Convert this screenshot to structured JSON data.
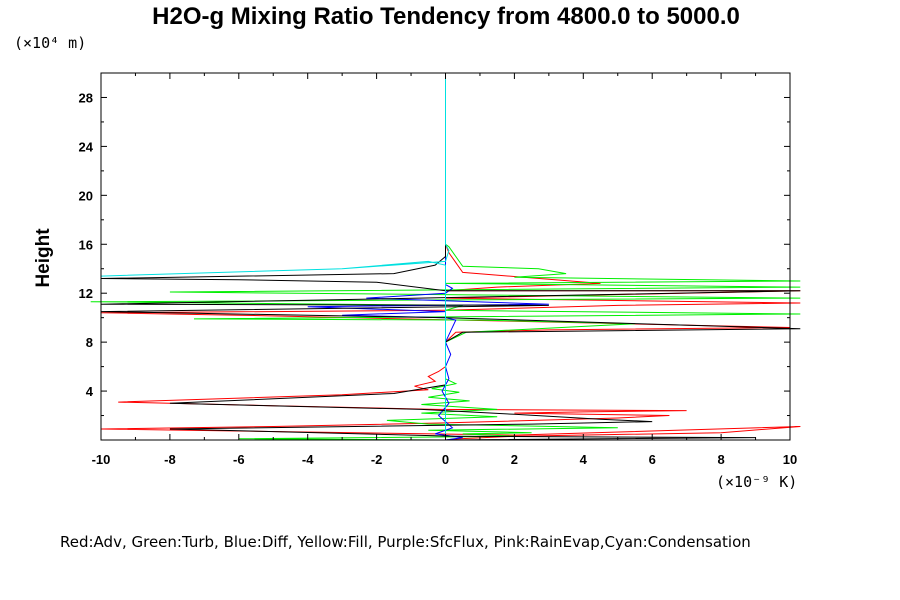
{
  "chart_data": {
    "type": "line",
    "title": "H2O-g Mixing Ratio Tendency from 4800.0 to 5000.0",
    "ylabel": "Height",
    "y_unit_label": "(×10⁴ m)",
    "x_unit_label": "(×10⁻⁹ K)",
    "xlim": [
      -10,
      10
    ],
    "ylim": [
      0,
      30
    ],
    "x_ticks": [
      "-10",
      "-8",
      "-6",
      "-4",
      "-2",
      "0",
      "2",
      "4",
      "6",
      "8",
      "10"
    ],
    "y_ticks": [
      "4",
      "8",
      "12",
      "16",
      "20",
      "24",
      "28"
    ],
    "grid": false,
    "legend_text": "Red:Adv, Green:Turb, Blue:Diff, Yellow:Fill, Purple:SfcFlux, Pink:RainEvap,Cyan:Condensation",
    "series": [
      {
        "color": "#ff0000",
        "points": [
          [
            0,
            0
          ],
          [
            0.4,
            0.1
          ],
          [
            2,
            0.3
          ],
          [
            8,
            0.6
          ],
          [
            10.3,
            1.1
          ],
          [
            2,
            0.4
          ],
          [
            -10,
            0.9
          ],
          [
            -5,
            1.1
          ],
          [
            0,
            1.4
          ],
          [
            5,
            1.8
          ],
          [
            6.5,
            2.0
          ],
          [
            2,
            2.2
          ],
          [
            4,
            2.3
          ],
          [
            7,
            2.4
          ],
          [
            -0.3,
            2.5
          ],
          [
            -5,
            2.8
          ],
          [
            -9.5,
            3.1
          ],
          [
            -3,
            3.7
          ],
          [
            -0.5,
            4.1
          ],
          [
            -0.9,
            4.4
          ],
          [
            -0.3,
            4.8
          ],
          [
            -0.5,
            5.2
          ],
          [
            -0.2,
            5.6
          ],
          [
            0,
            6
          ],
          [
            0,
            8
          ],
          [
            0.3,
            8.8
          ],
          [
            3,
            9.0
          ],
          [
            10,
            9.2
          ],
          [
            2,
            9.7
          ],
          [
            -6,
            10.2
          ],
          [
            -10,
            10.4
          ],
          [
            0,
            10.6
          ],
          [
            5,
            11.0
          ],
          [
            10.3,
            11.2
          ],
          [
            0,
            11.6
          ],
          [
            10.3,
            12.2
          ],
          [
            0,
            12.2
          ],
          [
            1.5,
            12.5
          ],
          [
            4.5,
            12.8
          ],
          [
            0.5,
            13.7
          ],
          [
            0.3,
            14.5
          ],
          [
            0.1,
            15.3
          ],
          [
            0,
            16
          ],
          [
            0,
            30
          ]
        ]
      },
      {
        "color": "#00ee00",
        "points": [
          [
            0,
            0
          ],
          [
            -6,
            0.1
          ],
          [
            2,
            0.3
          ],
          [
            0.5,
            0.5
          ],
          [
            2.5,
            0.6
          ],
          [
            -0.5,
            0.8
          ],
          [
            5,
            1.0
          ],
          [
            -0.5,
            1.3
          ],
          [
            -1.7,
            1.6
          ],
          [
            1.5,
            1.9
          ],
          [
            -0.7,
            2.2
          ],
          [
            1.5,
            2.5
          ],
          [
            -0.7,
            2.9
          ],
          [
            0.7,
            3.2
          ],
          [
            -0.5,
            3.5
          ],
          [
            0.4,
            3.9
          ],
          [
            -0.4,
            4.2
          ],
          [
            0.3,
            4.6
          ],
          [
            0,
            5
          ],
          [
            0,
            8
          ],
          [
            0.6,
            8.8
          ],
          [
            5.5,
            9.5
          ],
          [
            1,
            9.8
          ],
          [
            -7.3,
            9.9
          ],
          [
            10.3,
            10.3
          ],
          [
            0,
            10.6
          ],
          [
            0.5,
            11.0
          ],
          [
            -10.3,
            11.3
          ],
          [
            10.3,
            11.6
          ],
          [
            -8,
            12.1
          ],
          [
            10.3,
            12.5
          ],
          [
            0,
            12.8
          ],
          [
            10.3,
            13.0
          ],
          [
            2,
            13.3
          ],
          [
            3.5,
            13.6
          ],
          [
            2.7,
            14.0
          ],
          [
            0.5,
            14.2
          ],
          [
            0.3,
            15
          ],
          [
            0.1,
            15.8
          ],
          [
            0,
            16
          ],
          [
            0,
            30
          ]
        ]
      },
      {
        "color": "#0000ff",
        "points": [
          [
            0,
            0
          ],
          [
            0.5,
            0.2
          ],
          [
            -0.3,
            0.5
          ],
          [
            0.2,
            1
          ],
          [
            -0.2,
            2
          ],
          [
            0.1,
            3
          ],
          [
            -0.1,
            4
          ],
          [
            0.1,
            5
          ],
          [
            0,
            6
          ],
          [
            0.15,
            7
          ],
          [
            0,
            8
          ],
          [
            0.3,
            9.8
          ],
          [
            0,
            10
          ],
          [
            -3,
            10.2
          ],
          [
            0,
            10.5
          ],
          [
            -4,
            10.9
          ],
          [
            3,
            11.1
          ],
          [
            -2.3,
            11.6
          ],
          [
            0,
            12
          ],
          [
            0.2,
            12.4
          ],
          [
            0,
            12.7
          ],
          [
            0,
            30
          ]
        ]
      },
      {
        "color": "#000000",
        "points": [
          [
            0,
            0
          ],
          [
            9,
            0.2
          ],
          [
            0.3,
            0.3
          ],
          [
            -8,
            0.9
          ],
          [
            2.5,
            1.3
          ],
          [
            6,
            1.5
          ],
          [
            4.5,
            1.7
          ],
          [
            2,
            2.1
          ],
          [
            -0.7,
            2.5
          ],
          [
            -8,
            3.0
          ],
          [
            -1.5,
            3.8
          ],
          [
            0,
            4.5
          ],
          [
            0,
            8
          ],
          [
            0.5,
            8.8
          ],
          [
            10.3,
            9.1
          ],
          [
            0,
            10.0
          ],
          [
            -10,
            10.5
          ],
          [
            3,
            11.0
          ],
          [
            -10,
            11.1
          ],
          [
            10.3,
            12.2
          ],
          [
            0,
            12.2
          ],
          [
            -2,
            12.9
          ],
          [
            -6,
            13.1
          ],
          [
            -10,
            13.2
          ],
          [
            -1.5,
            13.6
          ],
          [
            -0.3,
            14.3
          ],
          [
            0,
            15
          ],
          [
            0,
            30
          ]
        ]
      },
      {
        "color": "#00e0e0",
        "points": [
          [
            0,
            0
          ],
          [
            0,
            14.3
          ],
          [
            -0.5,
            14.6
          ],
          [
            -3,
            14.0
          ],
          [
            -10,
            13.4
          ],
          [
            -3,
            14.0
          ],
          [
            0,
            14.6
          ],
          [
            0.1,
            15.5
          ],
          [
            0,
            16
          ],
          [
            0,
            30
          ]
        ]
      }
    ]
  }
}
